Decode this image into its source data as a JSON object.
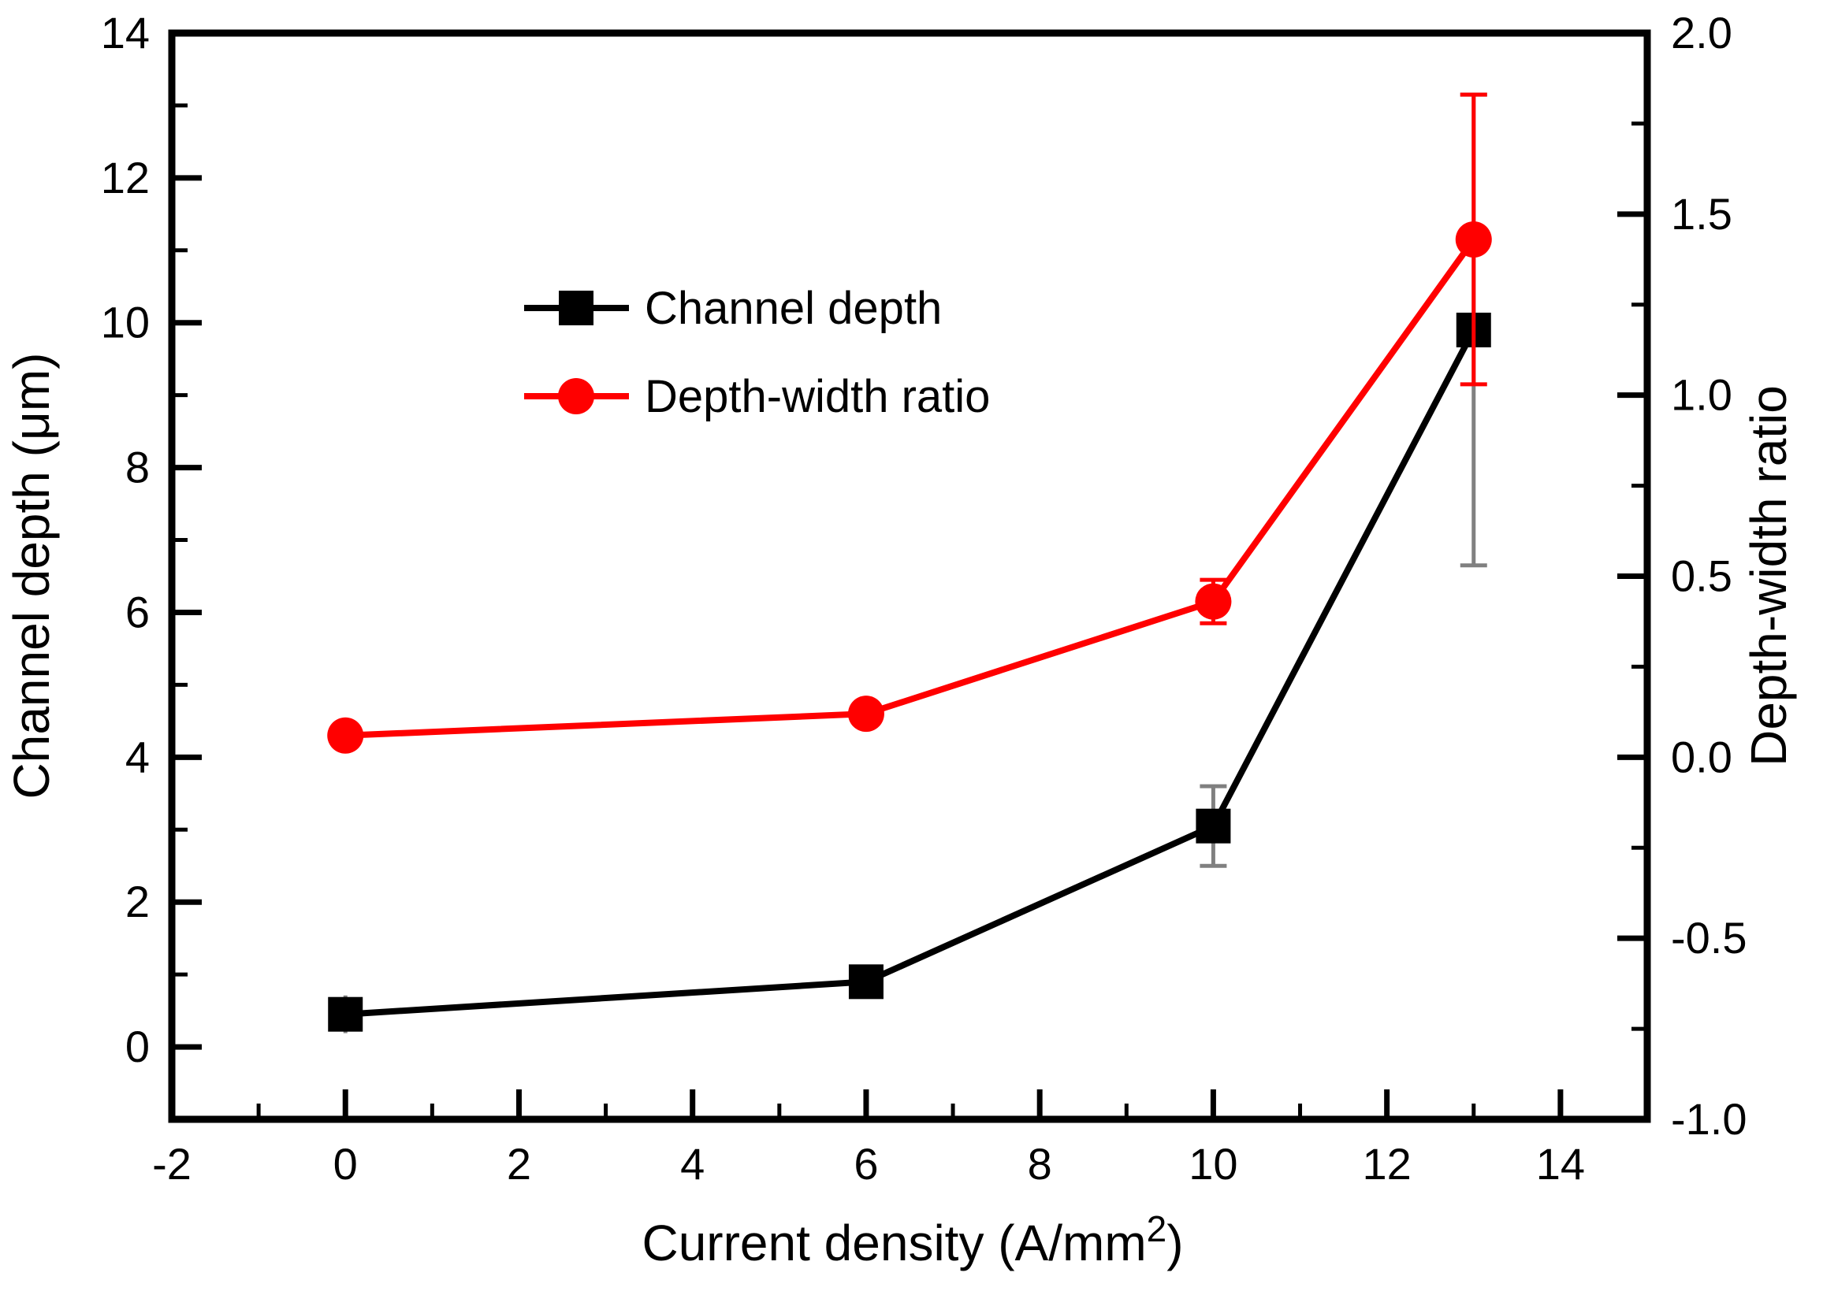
{
  "chart_data": {
    "type": "line",
    "title": "",
    "background": "#ffffff",
    "x_axis": {
      "label_pre": "Current density (A/mm",
      "label_sup": "2",
      "label_post": ")",
      "range": [
        -2,
        15
      ],
      "major_ticks": [
        -2,
        0,
        2,
        4,
        6,
        8,
        10,
        12,
        14
      ],
      "major_tick_labels": [
        "-2",
        "0",
        "2",
        "4",
        "6",
        "8",
        "10",
        "12",
        "14"
      ],
      "minor_ticks": [
        -1,
        1,
        3,
        5,
        7,
        9,
        11,
        13
      ]
    },
    "left_axis": {
      "label": "Channel depth (μm)",
      "range": [
        -1,
        14
      ],
      "major_ticks": [
        0,
        2,
        4,
        6,
        8,
        10,
        12,
        14
      ],
      "major_tick_labels": [
        "0",
        "2",
        "4",
        "6",
        "8",
        "10",
        "12",
        "14"
      ],
      "minor_ticks": [
        1,
        3,
        5,
        7,
        9,
        11,
        13
      ]
    },
    "right_axis": {
      "label": "Depth-width ratio",
      "range": [
        -1,
        2
      ],
      "major_ticks": [
        -1,
        -0.5,
        0,
        0.5,
        1,
        1.5,
        2
      ],
      "major_tick_labels": [
        "-1.0",
        "-0.5",
        "0.0",
        "0.5",
        "1.0",
        "1.5",
        "2.0"
      ],
      "minor_ticks": [
        -0.75,
        -0.25,
        0.25,
        0.75,
        1.25,
        1.75
      ]
    },
    "series": [
      {
        "name": "Channel depth",
        "axis": "left",
        "color": "#000000",
        "error_color": "#808080",
        "marker": "square",
        "points": [
          {
            "x": 0,
            "y": 0.45,
            "err": 0.26,
            "cap": false
          },
          {
            "x": 6,
            "y": 0.9,
            "err": 0
          },
          {
            "x": 10,
            "y": 3.05,
            "err": 0.55
          },
          {
            "x": 13,
            "y": 9.9,
            "err": 3.25
          }
        ]
      },
      {
        "name": "Depth-width ratio",
        "axis": "right",
        "color": "#ff0000",
        "error_color": "#ff0000",
        "marker": "circle",
        "points": [
          {
            "x": 0,
            "y": 0.06,
            "err": 0
          },
          {
            "x": 6,
            "y": 0.12,
            "err": 0
          },
          {
            "x": 10,
            "y": 0.43,
            "err": 0.06
          },
          {
            "x": 13,
            "y": 1.43,
            "err": 0.4
          }
        ]
      }
    ],
    "legend": {
      "items": [
        "Channel depth",
        "Depth-width ratio"
      ]
    }
  },
  "colors": {
    "frame": "#000000",
    "text": "#000000",
    "black_series": "#000000",
    "red_series": "#ff0000",
    "black_error": "#808080"
  }
}
